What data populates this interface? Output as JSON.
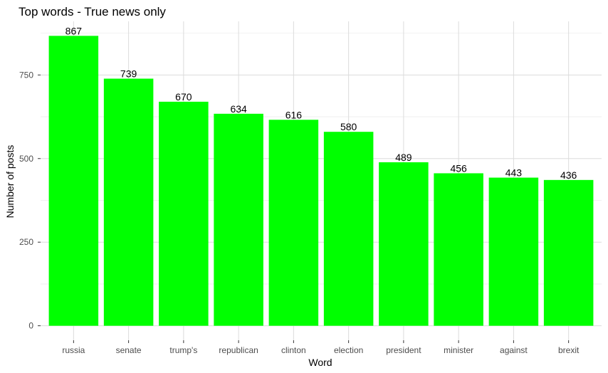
{
  "chart_data": {
    "type": "bar",
    "title": "Top words - True news only",
    "xlabel": "Word",
    "ylabel": "Number of posts",
    "categories": [
      "russia",
      "senate",
      "trump's",
      "republican",
      "clinton",
      "election",
      "president",
      "minister",
      "against",
      "brexit"
    ],
    "values": [
      867,
      739,
      670,
      634,
      616,
      580,
      489,
      456,
      443,
      436
    ],
    "ylim": [
      -43.35,
      910.35
    ],
    "yticks": [
      0,
      250,
      500,
      750
    ],
    "grid": true,
    "legend": "none",
    "bar_color": "#00FF00"
  }
}
